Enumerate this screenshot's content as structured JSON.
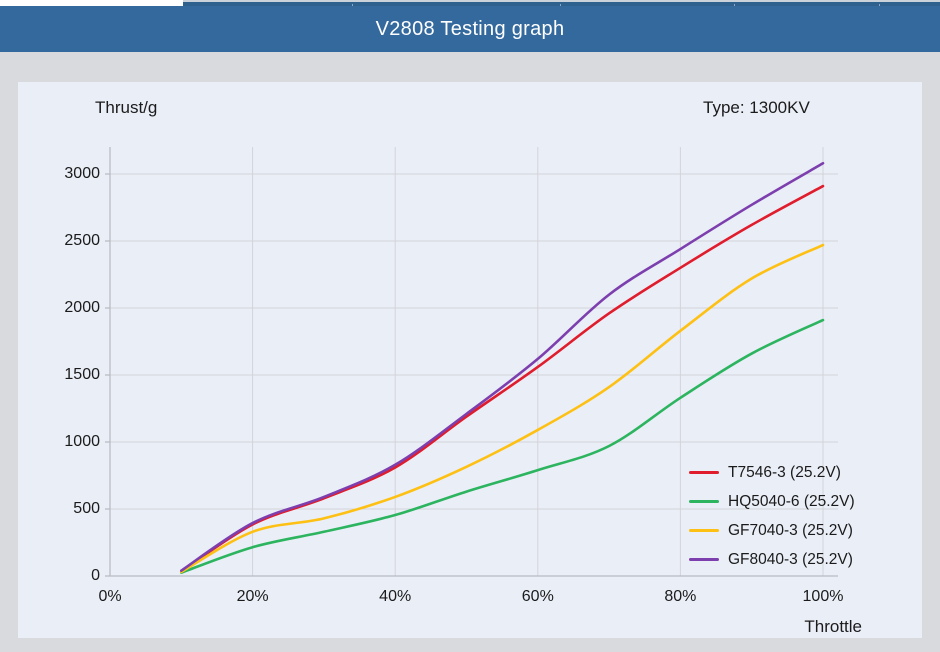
{
  "chrome": {
    "left_segment_color": "#ffffff",
    "strip_color": "#2f618f",
    "strip_top_color": "#ccd2d9"
  },
  "header": {
    "title": "V2808 Testing graph",
    "bg_color": "#34699e",
    "text_color": "#ffffff"
  },
  "card": {
    "bg_color": "#eaeef7",
    "thrust_axis_label": "Thrust/g",
    "type_label": "Type: 1300KV",
    "throttle_axis_label": "Throttle"
  },
  "chart_data": {
    "type": "line",
    "title": "V2808 Testing graph",
    "xlabel": "Throttle",
    "ylabel": "Thrust/g",
    "x_unit": "% throttle",
    "x": [
      10,
      20,
      30,
      40,
      50,
      60,
      70,
      80,
      90,
      100
    ],
    "series": [
      {
        "name": "T7546-3 (25.2V)",
        "color": "#e01d2d",
        "values": [
          35,
          385,
          580,
          810,
          1190,
          1560,
          1960,
          2300,
          2620,
          2910
        ]
      },
      {
        "name": "HQ5040-6 (25.2V)",
        "color": "#2cb45f",
        "values": [
          25,
          215,
          330,
          455,
          630,
          790,
          970,
          1330,
          1660,
          1910
        ]
      },
      {
        "name": "GF7040-3 (25.2V)",
        "color": "#fdc013",
        "values": [
          30,
          330,
          430,
          590,
          815,
          1090,
          1410,
          1830,
          2220,
          2470
        ]
      },
      {
        "name": "GF8040-3 (25.2V)",
        "color": "#7d3fae",
        "values": [
          40,
          395,
          590,
          830,
          1210,
          1620,
          2100,
          2440,
          2770,
          3080
        ]
      }
    ],
    "x_tick_labels": [
      "0%",
      "20%",
      "40%",
      "60%",
      "80%",
      "100%"
    ],
    "x_tick_values": [
      0,
      20,
      40,
      60,
      80,
      100
    ],
    "y_tick_values": [
      0,
      500,
      1000,
      1500,
      2000,
      2500,
      3000
    ],
    "xlim": [
      0,
      100
    ],
    "ylim": [
      0,
      3000
    ],
    "grid": true,
    "grid_color": "#d3d4d8",
    "axis_color": "#b7bac1",
    "legend_position": "inside lower right"
  }
}
